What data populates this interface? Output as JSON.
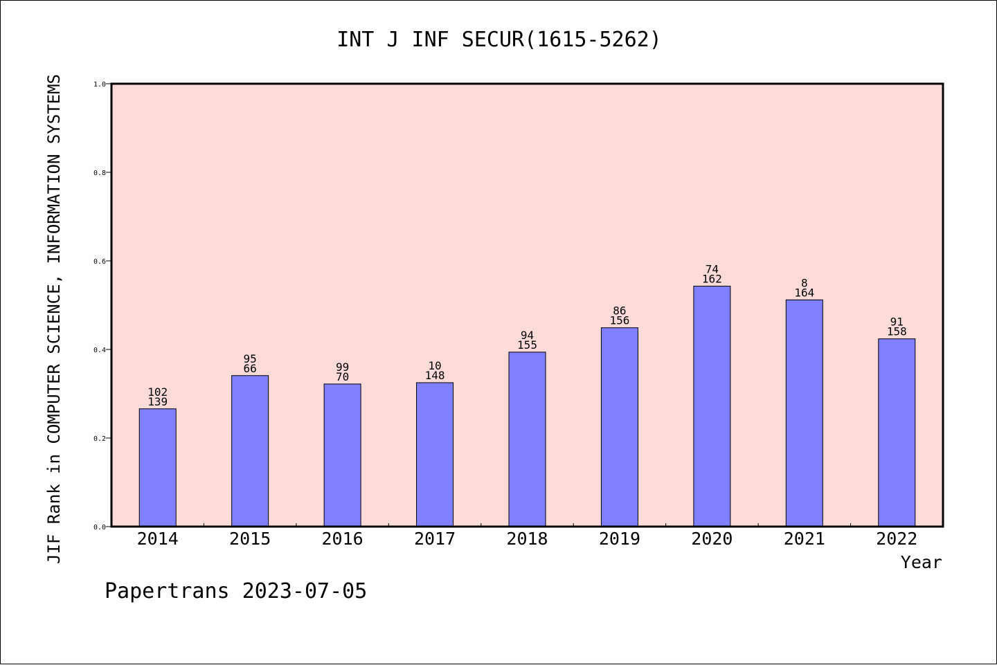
{
  "chart_data": {
    "type": "bar",
    "title": "INT J INF SECUR(1615-5262)",
    "xlabel": "Year",
    "ylabel": "JIF Rank in COMPUTER SCIENCE, INFORMATION SYSTEMS",
    "ylim": [
      0,
      1.0
    ],
    "yticks": [
      "0.0",
      "0.2",
      "0.4",
      "0.6",
      "0.8",
      "1.0"
    ],
    "categories": [
      "2014",
      "2015",
      "2016",
      "2017",
      "2018",
      "2019",
      "2020",
      "2021",
      "2022"
    ],
    "series": [
      {
        "values": [
          0.266,
          0.341,
          0.322,
          0.325,
          0.394,
          0.449,
          0.543,
          0.512,
          0.424
        ],
        "rank_labels": [
          "102",
          "95",
          "99",
          "10",
          "94",
          "86",
          "74",
          "8",
          "91"
        ],
        "total_labels": [
          "139",
          "66",
          "70",
          "148",
          "155",
          "156",
          "162",
          "164",
          "158"
        ]
      }
    ],
    "grid": false,
    "footer": "Papertrans 2023-07-05",
    "colors": {
      "plot_background": "#fddbd8",
      "bar_fill": "#8080ff",
      "bar_stroke": "#000000",
      "axis": "#000000"
    }
  }
}
